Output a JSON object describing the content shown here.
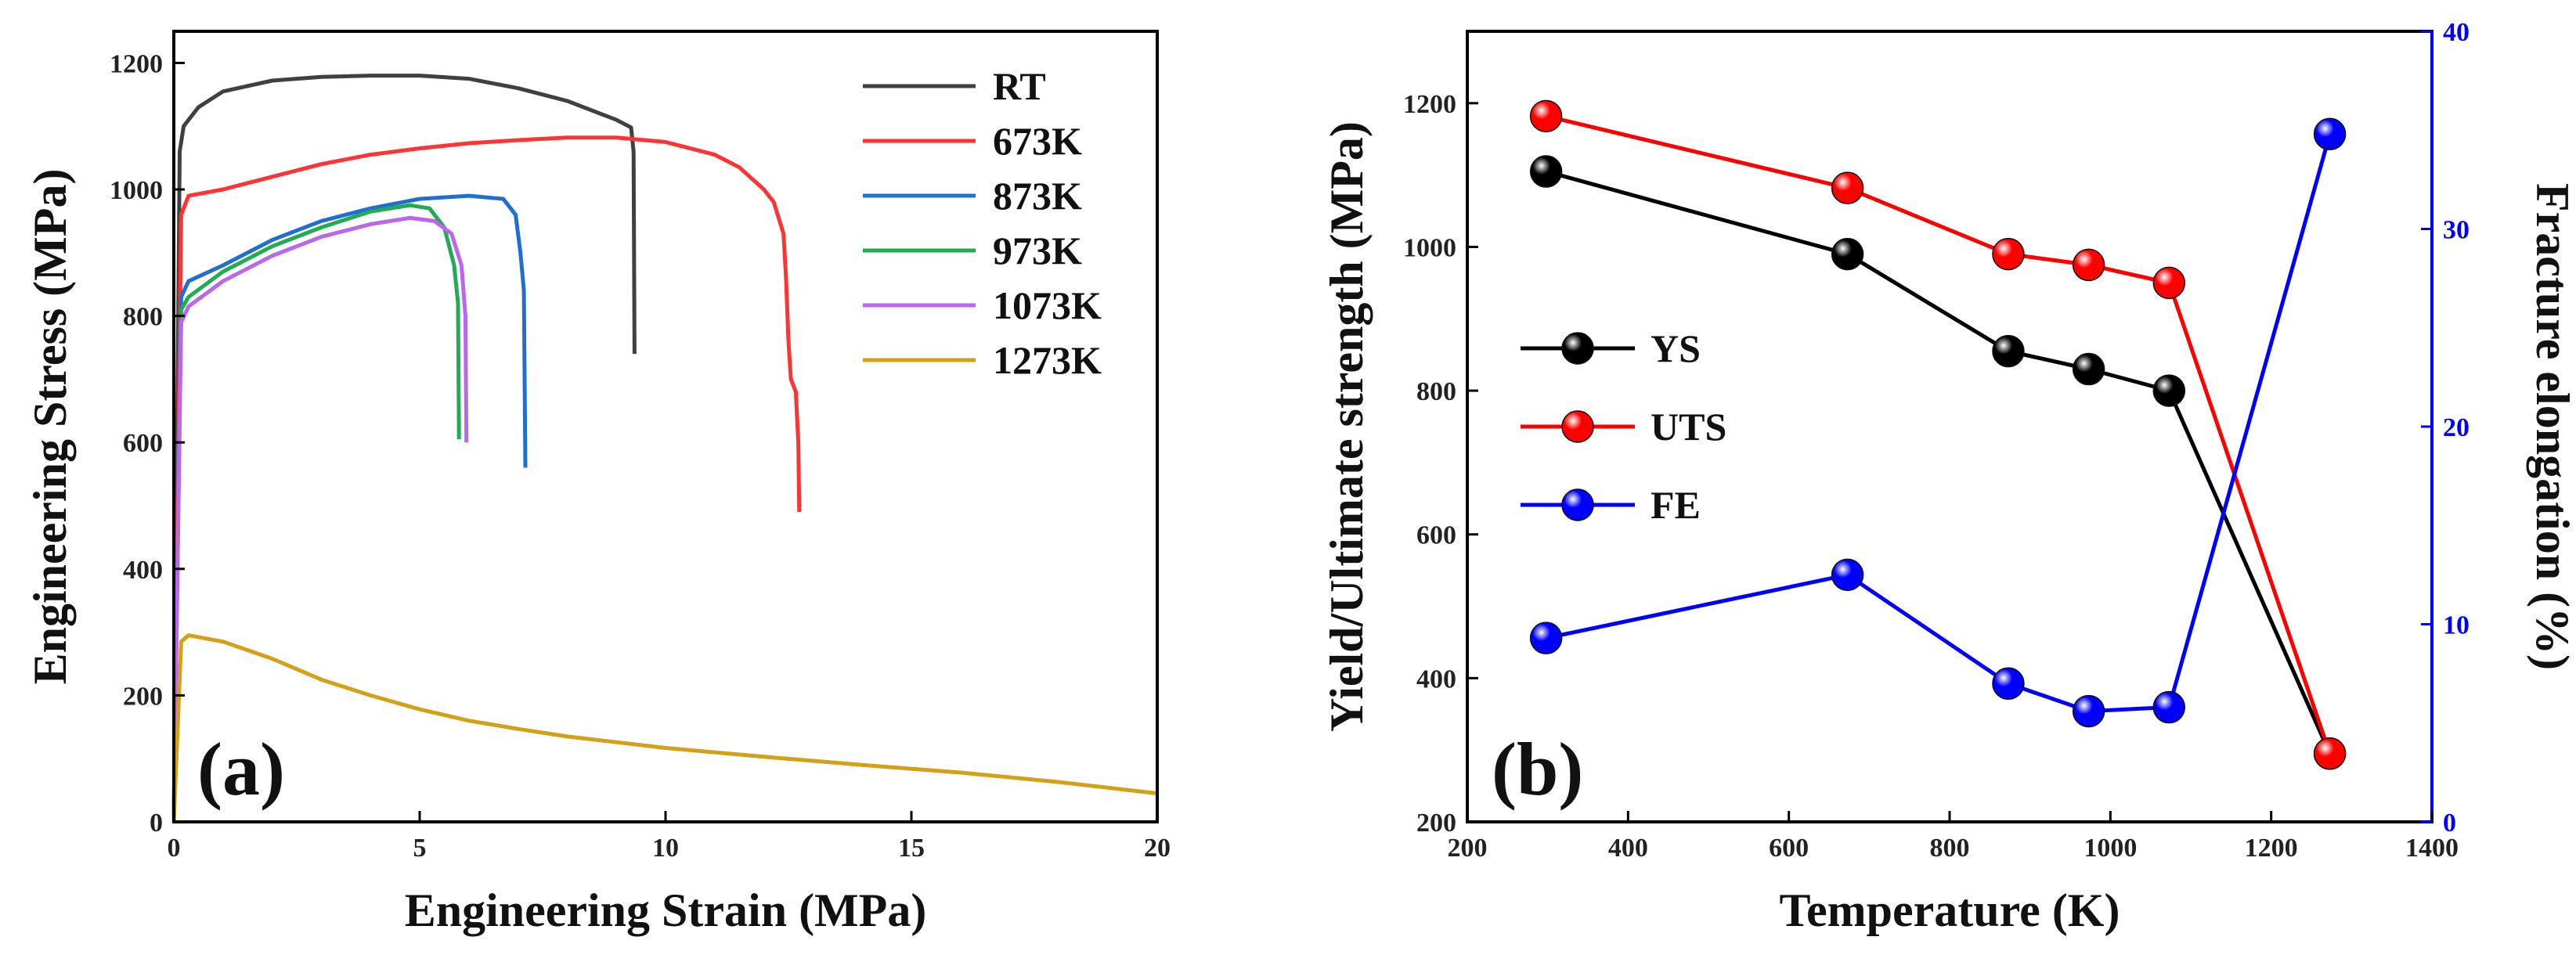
{
  "chart_data": [
    {
      "panel": "a",
      "type": "line",
      "panel_label": "(a)",
      "xlabel": "Engineering Strain (MPa)",
      "ylabel": "Engineering Stress (MPa)",
      "xlim": [
        0,
        20
      ],
      "ylim": [
        0,
        1250
      ],
      "x_ticks": [
        0,
        5,
        10,
        15,
        20
      ],
      "y_ticks": [
        0,
        200,
        400,
        600,
        800,
        1000,
        1200
      ],
      "legend_position": "top-right",
      "series": [
        {
          "name": "RT",
          "color": "#404040",
          "points": [
            [
              0,
              0
            ],
            [
              0.12,
              1060
            ],
            [
              0.2,
              1100
            ],
            [
              0.5,
              1130
            ],
            [
              1,
              1155
            ],
            [
              2,
              1172
            ],
            [
              3,
              1178
            ],
            [
              4,
              1180
            ],
            [
              5,
              1180
            ],
            [
              6,
              1175
            ],
            [
              7,
              1160
            ],
            [
              8,
              1140
            ],
            [
              9,
              1110
            ],
            [
              9.3,
              1098
            ],
            [
              9.35,
              1060
            ],
            [
              9.37,
              740
            ]
          ]
        },
        {
          "name": "673K",
          "color": "#ff3333",
          "points": [
            [
              0,
              0
            ],
            [
              0.15,
              960
            ],
            [
              0.3,
              990
            ],
            [
              1,
              1000
            ],
            [
              2,
              1020
            ],
            [
              3,
              1040
            ],
            [
              4,
              1055
            ],
            [
              5,
              1065
            ],
            [
              6,
              1073
            ],
            [
              7,
              1078
            ],
            [
              8,
              1082
            ],
            [
              9,
              1082
            ],
            [
              10,
              1075
            ],
            [
              11,
              1055
            ],
            [
              11.5,
              1035
            ],
            [
              12,
              1000
            ],
            [
              12.2,
              980
            ],
            [
              12.4,
              930
            ],
            [
              12.45,
              860
            ],
            [
              12.5,
              760
            ],
            [
              12.55,
              700
            ],
            [
              12.65,
              680
            ],
            [
              12.7,
              600
            ],
            [
              12.72,
              490
            ]
          ]
        },
        {
          "name": "873K",
          "color": "#1f6fd0",
          "points": [
            [
              0,
              0
            ],
            [
              0.15,
              830
            ],
            [
              0.3,
              855
            ],
            [
              1,
              880
            ],
            [
              2,
              920
            ],
            [
              3,
              950
            ],
            [
              4,
              970
            ],
            [
              5,
              985
            ],
            [
              6,
              990
            ],
            [
              6.7,
              985
            ],
            [
              6.95,
              960
            ],
            [
              7.05,
              900
            ],
            [
              7.12,
              840
            ],
            [
              7.15,
              560
            ]
          ]
        },
        {
          "name": "973K",
          "color": "#22aa55",
          "points": [
            [
              0,
              0
            ],
            [
              0.15,
              810
            ],
            [
              0.3,
              830
            ],
            [
              1,
              870
            ],
            [
              2,
              910
            ],
            [
              3,
              940
            ],
            [
              4,
              965
            ],
            [
              4.8,
              975
            ],
            [
              5.2,
              970
            ],
            [
              5.5,
              940
            ],
            [
              5.7,
              880
            ],
            [
              5.78,
              820
            ],
            [
              5.8,
              605
            ]
          ]
        },
        {
          "name": "1073K",
          "color": "#bb66ee",
          "points": [
            [
              0,
              0
            ],
            [
              0.15,
              790
            ],
            [
              0.3,
              815
            ],
            [
              1,
              855
            ],
            [
              2,
              895
            ],
            [
              3,
              925
            ],
            [
              4,
              945
            ],
            [
              4.8,
              955
            ],
            [
              5.3,
              950
            ],
            [
              5.65,
              930
            ],
            [
              5.85,
              880
            ],
            [
              5.93,
              800
            ],
            [
              5.95,
              600
            ]
          ]
        },
        {
          "name": "1273K",
          "color": "#d4a017",
          "points": [
            [
              0,
              0
            ],
            [
              0.15,
              285
            ],
            [
              0.3,
              295
            ],
            [
              1,
              285
            ],
            [
              2,
              258
            ],
            [
              3,
              225
            ],
            [
              4,
              200
            ],
            [
              5,
              178
            ],
            [
              6,
              160
            ],
            [
              7,
              147
            ],
            [
              8,
              135
            ],
            [
              9,
              126
            ],
            [
              10,
              117
            ],
            [
              12,
              103
            ],
            [
              14,
              90
            ],
            [
              16,
              78
            ],
            [
              18,
              63
            ],
            [
              20,
              45
            ]
          ]
        }
      ]
    },
    {
      "panel": "b",
      "type": "line",
      "panel_label": "(b)",
      "xlabel": "Temperature (K)",
      "ylabel": "Yield/Ultimate strength (MPa)",
      "y2label": "Fracture elongation (%)",
      "xlim": [
        200,
        1400
      ],
      "ylim": [
        200,
        1300
      ],
      "y2lim": [
        0,
        40
      ],
      "x_ticks": [
        200,
        400,
        600,
        800,
        1000,
        1200,
        1400
      ],
      "y_ticks": [
        200,
        400,
        600,
        800,
        1000,
        1200
      ],
      "y2_ticks": [
        0,
        10,
        20,
        30,
        40
      ],
      "legend_position": "center-left",
      "series": [
        {
          "name": "YS",
          "color": "#000000",
          "axis": "left",
          "x": [
            298,
            673,
            873,
            973,
            1073,
            1273
          ],
          "values": [
            1105,
            990,
            855,
            830,
            800,
            295
          ]
        },
        {
          "name": "UTS",
          "color": "#ff0000",
          "axis": "left",
          "x": [
            298,
            673,
            873,
            973,
            1073,
            1273
          ],
          "values": [
            1182,
            1082,
            990,
            975,
            950,
            295
          ]
        },
        {
          "name": "FE",
          "color": "#0000ff",
          "axis": "right",
          "x": [
            298,
            673,
            873,
            973,
            1073,
            1273
          ],
          "values": [
            9.3,
            12.5,
            7.0,
            5.6,
            5.8,
            34.8
          ]
        }
      ]
    }
  ]
}
